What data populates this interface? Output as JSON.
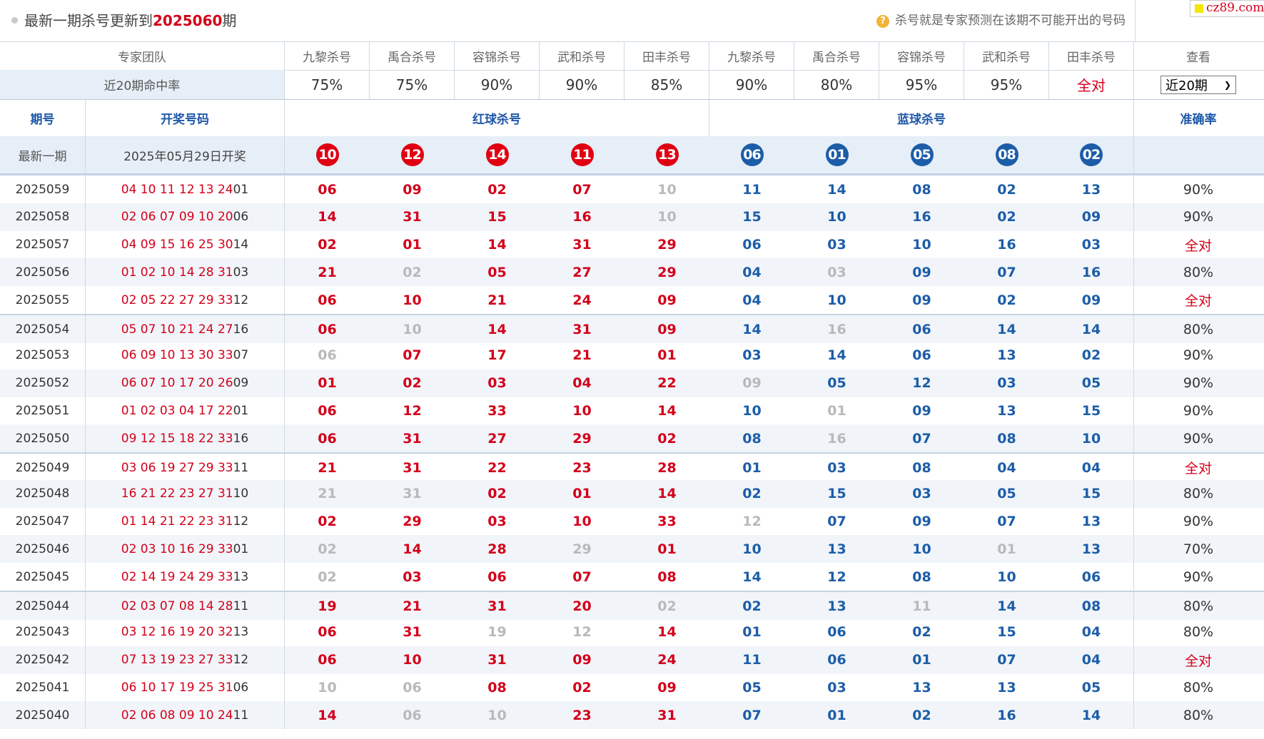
{
  "header": {
    "title_prefix": "最新一期杀号更新到",
    "issue": "2025060",
    "title_suffix": "期",
    "hint": "杀号就是专家预测在该期不可能开出的号码",
    "logo": "cz89.com"
  },
  "experts_label": "专家团队",
  "experts": [
    "九黎杀号",
    "禹合杀号",
    "容锦杀号",
    "武和杀号",
    "田丰杀号",
    "九黎杀号",
    "禹合杀号",
    "容锦杀号",
    "武和杀号",
    "田丰杀号"
  ],
  "view_label": "查看",
  "rates_label": "近20期命中率",
  "rates": [
    "75%",
    "75%",
    "90%",
    "90%",
    "85%",
    "90%",
    "80%",
    "95%",
    "95%",
    "全对"
  ],
  "period_select": "近20期",
  "columns": {
    "issue": "期号",
    "draw": "开奖号码",
    "red_group": "红球杀号",
    "blue_group": "蓝球杀号",
    "accuracy": "准确率"
  },
  "latest": {
    "label": "最新一期",
    "date": "2025年05月29日开奖",
    "red_kills": [
      "10",
      "12",
      "14",
      "11",
      "13"
    ],
    "blue_kills": [
      "06",
      "01",
      "05",
      "08",
      "02"
    ]
  },
  "rows": [
    {
      "issue": "2025059",
      "red": "04 10 11 12 13 24",
      "blue": "01",
      "kills": [
        "06",
        "09",
        "02",
        "07",
        "10",
        "11",
        "14",
        "08",
        "02",
        "13"
      ],
      "miss": [
        4
      ],
      "acc": "90%"
    },
    {
      "issue": "2025058",
      "red": "02 06 07 09 10 20",
      "blue": "06",
      "kills": [
        "14",
        "31",
        "15",
        "16",
        "10",
        "15",
        "10",
        "16",
        "02",
        "09"
      ],
      "miss": [
        4
      ],
      "acc": "90%"
    },
    {
      "issue": "2025057",
      "red": "04 09 15 16 25 30",
      "blue": "14",
      "kills": [
        "02",
        "01",
        "14",
        "31",
        "29",
        "06",
        "03",
        "10",
        "16",
        "03"
      ],
      "miss": [],
      "acc": "全对"
    },
    {
      "issue": "2025056",
      "red": "01 02 10 14 28 31",
      "blue": "03",
      "kills": [
        "21",
        "02",
        "05",
        "27",
        "29",
        "04",
        "03",
        "09",
        "07",
        "16"
      ],
      "miss": [
        1,
        6
      ],
      "acc": "80%"
    },
    {
      "issue": "2025055",
      "red": "02 05 22 27 29 33",
      "blue": "12",
      "kills": [
        "06",
        "10",
        "21",
        "24",
        "09",
        "04",
        "10",
        "09",
        "02",
        "09"
      ],
      "miss": [],
      "acc": "全对"
    },
    {
      "issue": "2025054",
      "red": "05 07 10 21 24 27",
      "blue": "16",
      "kills": [
        "06",
        "10",
        "14",
        "31",
        "09",
        "14",
        "16",
        "06",
        "14",
        "14"
      ],
      "miss": [
        1,
        6
      ],
      "acc": "80%"
    },
    {
      "issue": "2025053",
      "red": "06 09 10 13 30 33",
      "blue": "07",
      "kills": [
        "06",
        "07",
        "17",
        "21",
        "01",
        "03",
        "14",
        "06",
        "13",
        "02"
      ],
      "miss": [
        0
      ],
      "acc": "90%"
    },
    {
      "issue": "2025052",
      "red": "06 07 10 17 20 26",
      "blue": "09",
      "kills": [
        "01",
        "02",
        "03",
        "04",
        "22",
        "09",
        "05",
        "12",
        "03",
        "05"
      ],
      "miss": [
        5
      ],
      "acc": "90%"
    },
    {
      "issue": "2025051",
      "red": "01 02 03 04 17 22",
      "blue": "01",
      "kills": [
        "06",
        "12",
        "33",
        "10",
        "14",
        "10",
        "01",
        "09",
        "13",
        "15"
      ],
      "miss": [
        6
      ],
      "acc": "90%"
    },
    {
      "issue": "2025050",
      "red": "09 12 15 18 22 33",
      "blue": "16",
      "kills": [
        "06",
        "31",
        "27",
        "29",
        "02",
        "08",
        "16",
        "07",
        "08",
        "10"
      ],
      "miss": [
        6
      ],
      "acc": "90%"
    },
    {
      "issue": "2025049",
      "red": "03 06 19 27 29 33",
      "blue": "11",
      "kills": [
        "21",
        "31",
        "22",
        "23",
        "28",
        "01",
        "03",
        "08",
        "04",
        "04"
      ],
      "miss": [],
      "acc": "全对"
    },
    {
      "issue": "2025048",
      "red": "16 21 22 23 27 31",
      "blue": "10",
      "kills": [
        "21",
        "31",
        "02",
        "01",
        "14",
        "02",
        "15",
        "03",
        "05",
        "15"
      ],
      "miss": [
        0,
        1
      ],
      "acc": "80%"
    },
    {
      "issue": "2025047",
      "red": "01 14 21 22 23 31",
      "blue": "12",
      "kills": [
        "02",
        "29",
        "03",
        "10",
        "33",
        "12",
        "07",
        "09",
        "07",
        "13"
      ],
      "miss": [
        5
      ],
      "acc": "90%"
    },
    {
      "issue": "2025046",
      "red": "02 03 10 16 29 33",
      "blue": "01",
      "kills": [
        "02",
        "14",
        "28",
        "29",
        "01",
        "10",
        "13",
        "10",
        "01",
        "13"
      ],
      "miss": [
        0,
        3,
        8
      ],
      "acc": "70%"
    },
    {
      "issue": "2025045",
      "red": "02 14 19 24 29 33",
      "blue": "13",
      "kills": [
        "02",
        "03",
        "06",
        "07",
        "08",
        "14",
        "12",
        "08",
        "10",
        "06"
      ],
      "miss": [
        0
      ],
      "acc": "90%"
    },
    {
      "issue": "2025044",
      "red": "02 03 07 08 14 28",
      "blue": "11",
      "kills": [
        "19",
        "21",
        "31",
        "20",
        "02",
        "02",
        "13",
        "11",
        "14",
        "08"
      ],
      "miss": [
        4,
        7
      ],
      "acc": "80%"
    },
    {
      "issue": "2025043",
      "red": "03 12 16 19 20 32",
      "blue": "13",
      "kills": [
        "06",
        "31",
        "19",
        "12",
        "14",
        "01",
        "06",
        "02",
        "15",
        "04"
      ],
      "miss": [
        2,
        3
      ],
      "acc": "80%"
    },
    {
      "issue": "2025042",
      "red": "07 13 19 23 27 33",
      "blue": "12",
      "kills": [
        "06",
        "10",
        "31",
        "09",
        "24",
        "11",
        "06",
        "01",
        "07",
        "04"
      ],
      "miss": [],
      "acc": "全对"
    },
    {
      "issue": "2025041",
      "red": "06 10 17 19 25 31",
      "blue": "06",
      "kills": [
        "10",
        "06",
        "08",
        "02",
        "09",
        "05",
        "03",
        "13",
        "13",
        "05"
      ],
      "miss": [
        0,
        1
      ],
      "acc": "80%"
    },
    {
      "issue": "2025040",
      "red": "02 06 08 09 10 24",
      "blue": "11",
      "kills": [
        "14",
        "06",
        "10",
        "23",
        "31",
        "07",
        "01",
        "02",
        "16",
        "14"
      ],
      "miss": [
        1,
        2
      ],
      "acc": "80%"
    }
  ]
}
